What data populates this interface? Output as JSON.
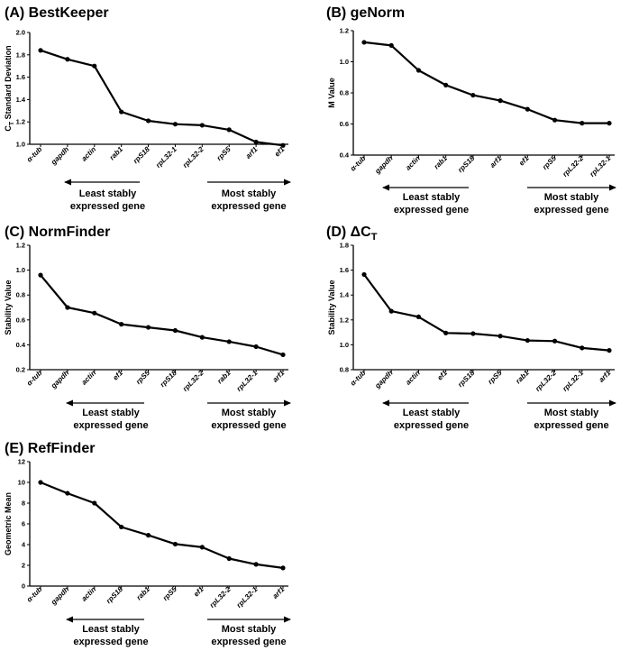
{
  "chart_data": [
    {
      "type": "line",
      "panel": "(A)",
      "title": "BestKeeper",
      "ylabel_main": "C",
      "ylabel_sub": "T",
      "ylabel_rest": " Standard Deviation",
      "ylabel": "CT Standard Deviation",
      "ylim": [
        1.0,
        2.0
      ],
      "yticks": [
        1.0,
        1.2,
        1.4,
        1.6,
        1.8,
        2.0
      ],
      "ytick_labels": [
        "1.0",
        "1.2",
        "1.4",
        "1.6",
        "1.8",
        "2.0"
      ],
      "categories": [
        "α-tub",
        "gapdh",
        "actin",
        "rab1",
        "rpS18",
        "rpL32-1",
        "rpL32-2",
        "rpS5",
        "arf1",
        "ef1"
      ],
      "values": [
        1.84,
        1.76,
        1.7,
        1.29,
        1.21,
        1.18,
        1.17,
        1.13,
        1.02,
        0.99
      ],
      "arrow_left": [
        "Least stably",
        "expressed gene"
      ],
      "arrow_right": [
        "Most stably",
        "expressed gene"
      ]
    },
    {
      "type": "line",
      "panel": "(B)",
      "title": "geNorm",
      "ylabel": "M Value",
      "ylim": [
        0.4,
        1.2
      ],
      "yticks": [
        0.4,
        0.6,
        0.8,
        1.0,
        1.2
      ],
      "ytick_labels": [
        "0.4",
        "0.6",
        "0.8",
        "1.0",
        "1.2"
      ],
      "categories": [
        "α-tub",
        "gapdh",
        "actin",
        "rab1",
        "rpS18",
        "arf1",
        "ef1",
        "rpS5",
        "rpL32-2",
        "rpL32-1"
      ],
      "values": [
        1.125,
        1.105,
        0.945,
        0.85,
        0.785,
        0.75,
        0.695,
        0.625,
        0.605,
        0.605
      ],
      "arrow_left": [
        "Least stably",
        "expressed gene"
      ],
      "arrow_right": [
        "Most stably",
        "expressed gene"
      ]
    },
    {
      "type": "line",
      "panel": "(C)",
      "title": "NormFinder",
      "ylabel": "Stability Value",
      "ylim": [
        0.2,
        1.2
      ],
      "yticks": [
        0.2,
        0.4,
        0.6,
        0.8,
        1.0,
        1.2
      ],
      "ytick_labels": [
        "0.2",
        "0.4",
        "0.6",
        "0.8",
        "1.0",
        "1.2"
      ],
      "categories": [
        "α-tub",
        "gapdh",
        "actin",
        "ef1",
        "rpS5",
        "rpS18",
        "rpL32-2",
        "rab1",
        "rpL32-1",
        "arf1"
      ],
      "values": [
        0.96,
        0.7,
        0.655,
        0.565,
        0.54,
        0.515,
        0.46,
        0.425,
        0.385,
        0.32
      ],
      "arrow_left": [
        "Least stably",
        "expressed gene"
      ],
      "arrow_right": [
        "Most stably",
        "expressed gene"
      ]
    },
    {
      "type": "line",
      "panel": "(D)",
      "title": "ΔC",
      "title_sub": "T",
      "ylabel": "Stability Value",
      "ylim": [
        0.8,
        1.8
      ],
      "yticks": [
        0.8,
        1.0,
        1.2,
        1.4,
        1.6,
        1.8
      ],
      "ytick_labels": [
        "0.8",
        "1.0",
        "1.2",
        "1.4",
        "1.6",
        "1.8"
      ],
      "categories": [
        "α-tub",
        "gapdh",
        "actin",
        "ef1",
        "rpS18",
        "rpS5",
        "rab1",
        "rpL32-2",
        "rpL32-1",
        "arf1"
      ],
      "values": [
        1.565,
        1.27,
        1.225,
        1.095,
        1.09,
        1.07,
        1.035,
        1.03,
        0.975,
        0.955
      ],
      "arrow_left": [
        "Least stably",
        "expressed gene"
      ],
      "arrow_right": [
        "Most stably",
        "expressed gene"
      ]
    },
    {
      "type": "line",
      "panel": "(E)",
      "title": "RefFinder",
      "ylabel": "Geometric Mean",
      "ylim": [
        0,
        12
      ],
      "yticks": [
        0,
        2,
        4,
        6,
        8,
        10,
        12
      ],
      "ytick_labels": [
        "0",
        "2",
        "4",
        "6",
        "8",
        "10",
        "12"
      ],
      "categories": [
        "α-tub",
        "gapdh",
        "actin",
        "rpS18",
        "rab1",
        "rpS5",
        "ef1",
        "rpL32-2",
        "rpL32-1",
        "arf1"
      ],
      "values": [
        10.0,
        8.95,
        8.0,
        5.7,
        4.9,
        4.05,
        3.75,
        2.65,
        2.1,
        1.75
      ],
      "arrow_left": [
        "Least stably",
        "expressed gene"
      ],
      "arrow_right": [
        "Most stably",
        "expressed gene"
      ]
    }
  ]
}
